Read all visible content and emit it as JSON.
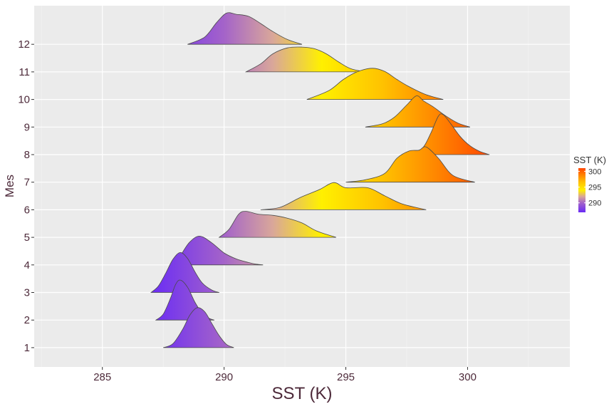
{
  "chart_data": {
    "type": "area",
    "subtype": "ridgeline",
    "title": "",
    "xlabel": "SST (K)",
    "ylabel": "Mes",
    "xlim": [
      282.2,
      304.2
    ],
    "ylim": [
      0.3,
      13.4
    ],
    "x_ticks": [
      285,
      290,
      295,
      300
    ],
    "x_tick_labels": [
      "285",
      "290",
      "295",
      "300"
    ],
    "y_ticks": [
      1,
      2,
      3,
      4,
      5,
      6,
      7,
      8,
      9,
      10,
      11,
      12
    ],
    "y_tick_labels": [
      "1",
      "2",
      "3",
      "4",
      "5",
      "6",
      "7",
      "8",
      "9",
      "10",
      "11",
      "12"
    ],
    "grid": true,
    "background": "#ebebeb",
    "ridge_scale": 1.45,
    "legend": {
      "title": "SST (K)",
      "placement": "right",
      "ticks": [
        290,
        295,
        300
      ],
      "tick_labels": [
        "290",
        "295",
        "300"
      ],
      "range": [
        287.0,
        301.0
      ]
    },
    "colorscale": [
      {
        "value": 287.0,
        "color": "#6a2cf5"
      },
      {
        "value": 290.0,
        "color": "#a463c9"
      },
      {
        "value": 292.0,
        "color": "#d9a79a"
      },
      {
        "value": 294.0,
        "color": "#fff000"
      },
      {
        "value": 296.5,
        "color": "#ffc200"
      },
      {
        "value": 298.5,
        "color": "#ff8c00"
      },
      {
        "value": 301.0,
        "color": "#ff4500"
      }
    ],
    "series": [
      {
        "month": 1,
        "x": [
          287.5,
          287.9,
          288.3,
          288.6,
          288.9,
          289.2,
          289.5,
          289.8,
          290.1,
          290.4
        ],
        "y": [
          0.0,
          0.1,
          0.46,
          0.82,
          1.0,
          0.9,
          0.6,
          0.3,
          0.08,
          0.0
        ]
      },
      {
        "month": 2,
        "x": [
          287.2,
          287.5,
          287.8,
          288.0,
          288.2,
          288.5,
          288.8,
          289.1,
          289.4,
          289.6
        ],
        "y": [
          0.0,
          0.15,
          0.55,
          0.88,
          1.0,
          0.82,
          0.45,
          0.17,
          0.04,
          0.0
        ]
      },
      {
        "month": 3,
        "x": [
          287.0,
          287.3,
          287.6,
          287.9,
          288.2,
          288.5,
          288.8,
          289.1,
          289.5,
          289.8
        ],
        "y": [
          0.0,
          0.16,
          0.48,
          0.83,
          1.0,
          0.85,
          0.52,
          0.24,
          0.06,
          0.0
        ]
      },
      {
        "month": 4,
        "x": [
          288.0,
          288.3,
          288.6,
          289.0,
          289.5,
          290.0,
          290.5,
          291.0,
          291.3,
          291.6
        ],
        "y": [
          0.0,
          0.32,
          0.58,
          0.72,
          0.55,
          0.3,
          0.15,
          0.06,
          0.02,
          0.0
        ]
      },
      {
        "month": 5,
        "x": [
          289.8,
          290.2,
          290.6,
          290.9,
          291.4,
          292.0,
          292.6,
          293.2,
          293.8,
          294.6
        ],
        "y": [
          0.0,
          0.2,
          0.58,
          0.65,
          0.58,
          0.55,
          0.48,
          0.36,
          0.16,
          0.0
        ]
      },
      {
        "month": 6,
        "x": [
          291.5,
          292.3,
          293.1,
          293.9,
          294.5,
          295.0,
          295.9,
          296.6,
          297.3,
          298.3
        ],
        "y": [
          0.0,
          0.06,
          0.3,
          0.5,
          0.68,
          0.55,
          0.55,
          0.35,
          0.15,
          0.0
        ]
      },
      {
        "month": 7,
        "x": [
          295.0,
          295.8,
          296.6,
          297.1,
          297.6,
          298.0,
          298.3,
          298.8,
          299.4,
          300.3
        ],
        "y": [
          0.0,
          0.06,
          0.22,
          0.6,
          0.78,
          0.8,
          0.88,
          0.6,
          0.17,
          0.0
        ]
      },
      {
        "month": 8,
        "x": [
          297.8,
          298.2,
          298.5,
          298.8,
          299.0,
          299.3,
          299.7,
          300.1,
          300.5,
          300.9
        ],
        "y": [
          0.0,
          0.2,
          0.55,
          0.96,
          1.0,
          0.78,
          0.45,
          0.22,
          0.08,
          0.0
        ]
      },
      {
        "month": 9,
        "x": [
          295.8,
          296.5,
          297.0,
          297.5,
          297.9,
          298.2,
          298.6,
          299.1,
          299.6,
          300.1
        ],
        "y": [
          0.0,
          0.08,
          0.25,
          0.55,
          0.78,
          0.65,
          0.5,
          0.28,
          0.1,
          0.0
        ]
      },
      {
        "month": 10,
        "x": [
          293.4,
          294.3,
          294.9,
          295.5,
          296.1,
          296.6,
          297.1,
          297.6,
          298.3,
          299.0
        ],
        "y": [
          0.0,
          0.22,
          0.5,
          0.7,
          0.78,
          0.7,
          0.5,
          0.32,
          0.12,
          0.0
        ]
      },
      {
        "month": 11,
        "x": [
          290.9,
          291.5,
          292.0,
          292.6,
          293.2,
          293.7,
          294.2,
          294.7,
          295.2,
          295.8
        ],
        "y": [
          0.0,
          0.2,
          0.45,
          0.6,
          0.62,
          0.58,
          0.45,
          0.25,
          0.08,
          0.0
        ]
      },
      {
        "month": 12,
        "x": [
          288.5,
          289.2,
          289.7,
          290.1,
          290.5,
          291.0,
          291.5,
          292.0,
          292.6,
          293.2
        ],
        "y": [
          0.0,
          0.18,
          0.55,
          0.78,
          0.75,
          0.7,
          0.52,
          0.32,
          0.12,
          0.0
        ]
      }
    ]
  }
}
